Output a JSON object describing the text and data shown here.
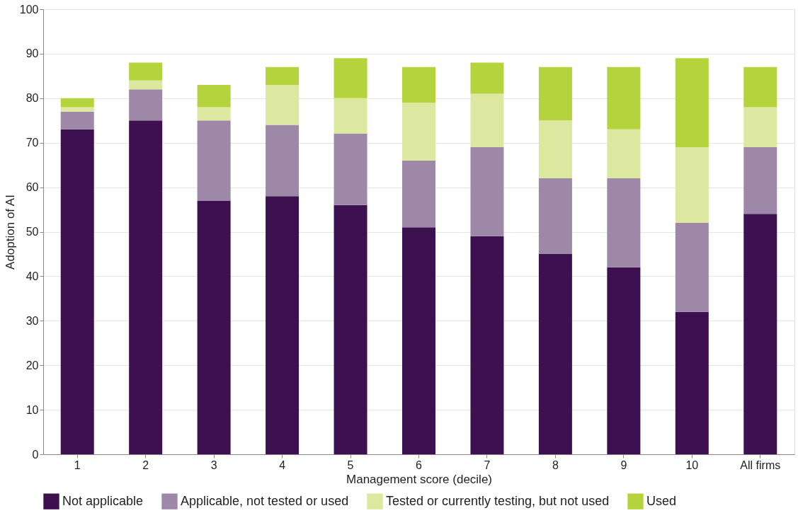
{
  "chart_data": {
    "type": "bar",
    "stacked": true,
    "xlabel": "Management score (decile)",
    "ylabel": "Adoption of AI",
    "categories": [
      "1",
      "2",
      "3",
      "4",
      "5",
      "6",
      "7",
      "8",
      "9",
      "10",
      "All firms"
    ],
    "ylim": [
      0,
      100
    ],
    "yticks": [
      0,
      10,
      20,
      30,
      40,
      50,
      60,
      70,
      80,
      90,
      100
    ],
    "grid": "y",
    "legend": "bottom",
    "series": [
      {
        "name": "Not applicable",
        "color": "#3d1150",
        "values": [
          73,
          75,
          57,
          58,
          56,
          51,
          49,
          45,
          42,
          32,
          54
        ]
      },
      {
        "name": "Applicable, not tested or used",
        "color": "#9e88a8",
        "values": [
          4,
          7,
          18,
          16,
          16,
          15,
          20,
          17,
          20,
          20,
          15
        ]
      },
      {
        "name": "Tested or currently testing, but not used",
        "color": "#dce8a0",
        "values": [
          1,
          2,
          3,
          9,
          8,
          13,
          12,
          13,
          11,
          17,
          9
        ]
      },
      {
        "name": "Used",
        "color": "#b5d33d",
        "values": [
          2,
          4,
          5,
          4,
          9,
          8,
          7,
          12,
          14,
          20,
          9
        ]
      }
    ]
  }
}
